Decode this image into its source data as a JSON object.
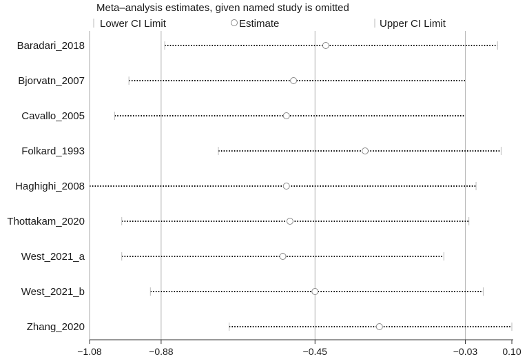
{
  "chart_data": {
    "type": "forest",
    "title": "Meta–analysis estimates, given named study is omitted",
    "legend": {
      "lower": "Lower CI Limit",
      "estimate": "Estimate",
      "upper": "Upper CI Limit",
      "placement": "top"
    },
    "xlim": [
      -1.08,
      0.1
    ],
    "reference_lines": [
      -0.88,
      -0.45,
      -0.03
    ],
    "ticks": [
      -1.08,
      -0.88,
      -0.45,
      -0.03,
      0.1
    ],
    "tick_labels": [
      "−1.08",
      "−0.88",
      "−0.45",
      "−0.03",
      "0.10"
    ],
    "studies": [
      {
        "name": "Baradari_2018",
        "lower": -0.87,
        "estimate": -0.42,
        "upper": 0.06
      },
      {
        "name": "Bjorvatn_2007",
        "lower": -0.97,
        "estimate": -0.51,
        "upper": -0.03
      },
      {
        "name": "Cavallo_2005",
        "lower": -1.01,
        "estimate": -0.53,
        "upper": -0.03
      },
      {
        "name": "Folkard_1993",
        "lower": -0.72,
        "estimate": -0.31,
        "upper": 0.07
      },
      {
        "name": "Haghighi_2008",
        "lower": -1.08,
        "estimate": -0.53,
        "upper": -0.0
      },
      {
        "name": "Thottakam_2020",
        "lower": -0.99,
        "estimate": -0.52,
        "upper": -0.02
      },
      {
        "name": "West_2021_a",
        "lower": -0.99,
        "estimate": -0.54,
        "upper": -0.09
      },
      {
        "name": "West_2021_b",
        "lower": -0.91,
        "estimate": -0.45,
        "upper": 0.02
      },
      {
        "name": "Zhang_2020",
        "lower": -0.69,
        "estimate": -0.27,
        "upper": 0.1
      }
    ]
  }
}
